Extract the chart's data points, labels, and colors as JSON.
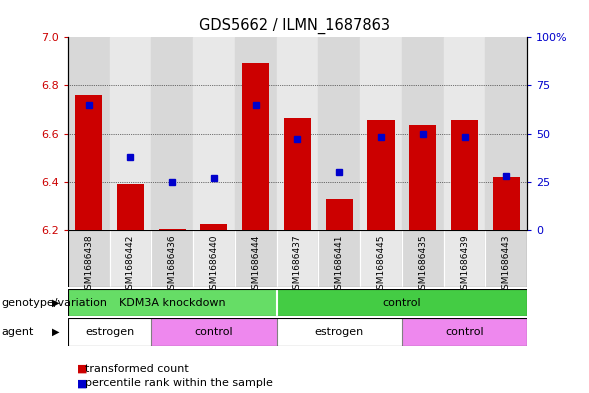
{
  "title": "GDS5662 / ILMN_1687863",
  "samples": [
    "GSM1686438",
    "GSM1686442",
    "GSM1686436",
    "GSM1686440",
    "GSM1686444",
    "GSM1686437",
    "GSM1686441",
    "GSM1686445",
    "GSM1686435",
    "GSM1686439",
    "GSM1686443"
  ],
  "bar_values": [
    6.76,
    6.39,
    6.205,
    6.225,
    6.895,
    6.665,
    6.33,
    6.655,
    6.635,
    6.655,
    6.42
  ],
  "percentile_values": [
    65,
    38,
    25,
    27,
    65,
    47,
    30,
    48,
    50,
    48,
    28
  ],
  "y_min": 6.2,
  "y_max": 7.0,
  "y_ticks": [
    6.2,
    6.4,
    6.6,
    6.8,
    7.0
  ],
  "right_y_ticks": [
    0,
    25,
    50,
    75,
    100
  ],
  "right_y_labels": [
    "0",
    "25",
    "50",
    "75",
    "100%"
  ],
  "bar_color": "#cc0000",
  "dot_color": "#0000cc",
  "bar_baseline": 6.2,
  "col_bg_even": "#e8e8e8",
  "col_bg_odd": "#f4f4f4",
  "genotype_groups": [
    {
      "label": "KDM3A knockdown",
      "start": 0,
      "end": 5,
      "color": "#66dd66"
    },
    {
      "label": "control",
      "start": 5,
      "end": 11,
      "color": "#44cc44"
    }
  ],
  "agent_groups": [
    {
      "label": "estrogen",
      "start": 0,
      "end": 2,
      "color": "#ffffff"
    },
    {
      "label": "control",
      "start": 2,
      "end": 5,
      "color": "#ee88ee"
    },
    {
      "label": "estrogen",
      "start": 5,
      "end": 8,
      "color": "#ffffff"
    },
    {
      "label": "control",
      "start": 8,
      "end": 11,
      "color": "#ee88ee"
    }
  ],
  "legend_bar_label": "transformed count",
  "legend_dot_label": "percentile rank within the sample",
  "genotype_label": "genotype/variation",
  "agent_label": "agent",
  "background_color": "#ffffff"
}
